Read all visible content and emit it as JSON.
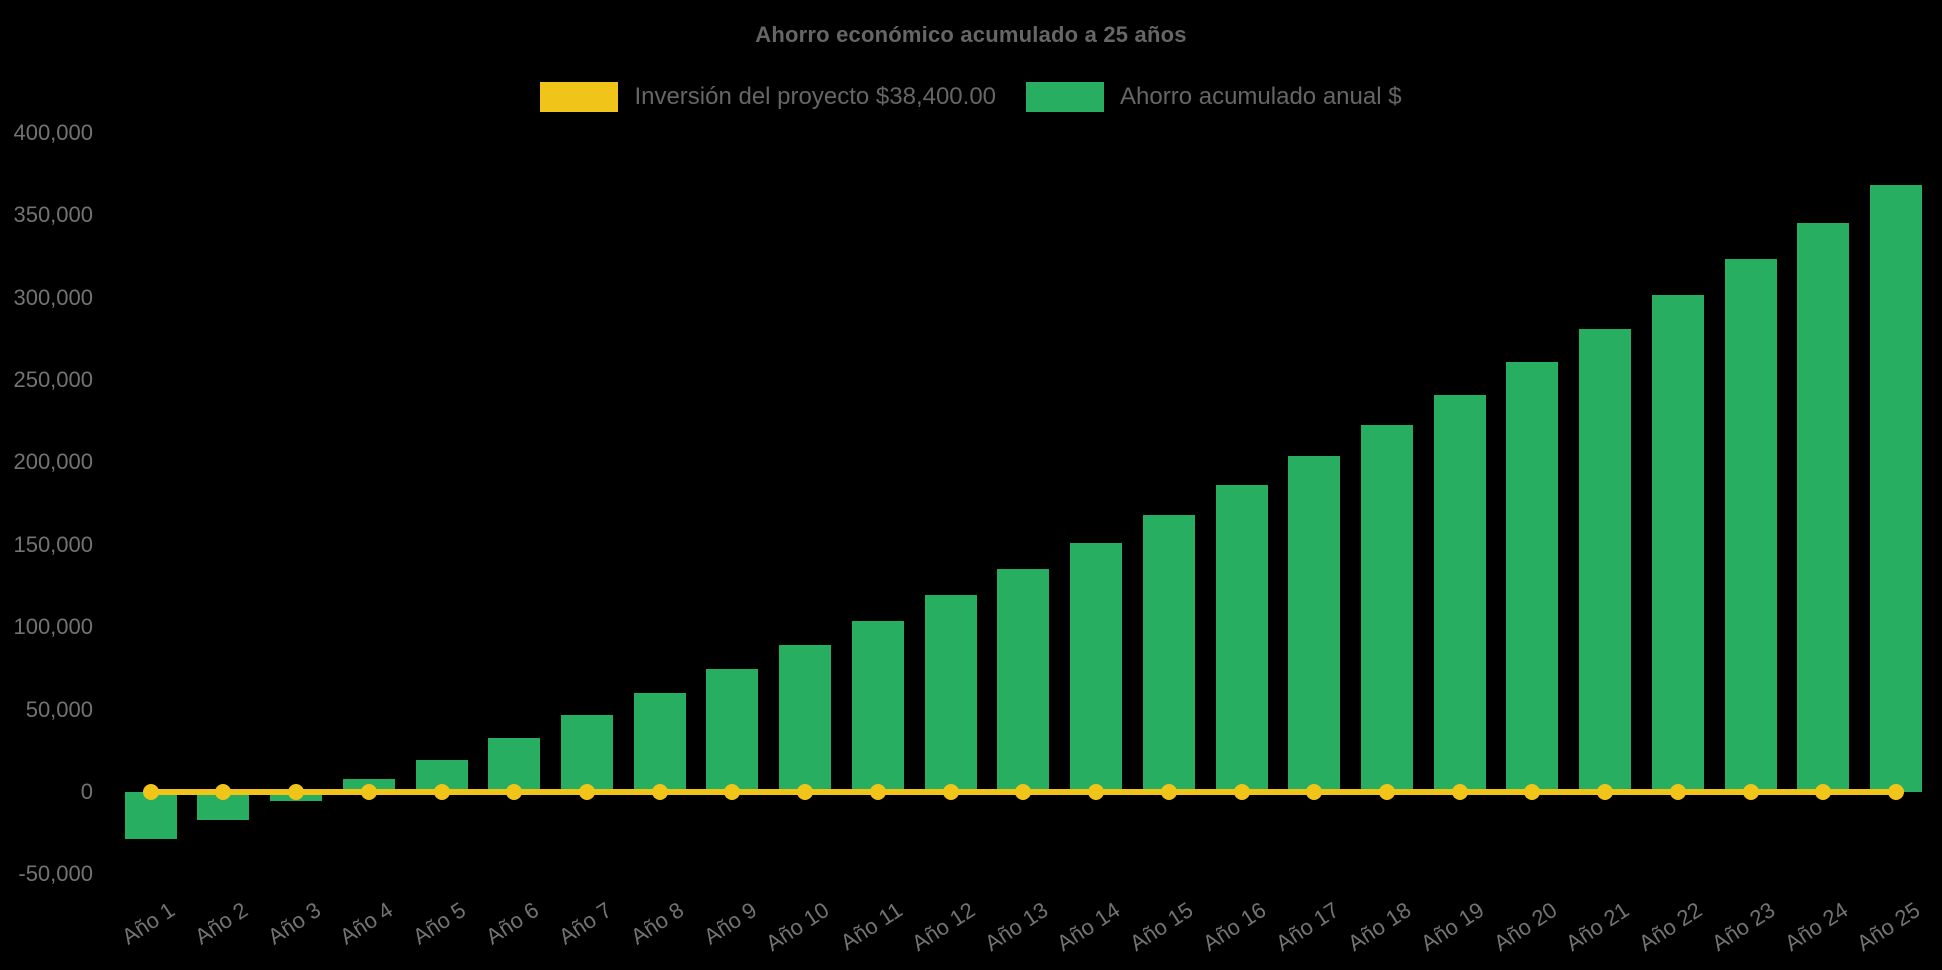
{
  "chart": {
    "title": "Ahorro económico acumulado a 25 años",
    "background_color": "#000000",
    "text_color": "#666666",
    "axis_label_color": "#737373"
  },
  "chart_data": {
    "type": "bar",
    "title": "Ahorro económico acumulado a 25 años",
    "categories": [
      "Año 1",
      "Año 2",
      "Año 3",
      "Año 4",
      "Año 5",
      "Año 6",
      "Año 7",
      "Año 8",
      "Año 9",
      "Año 10",
      "Año 11",
      "Año 12",
      "Año 13",
      "Año 14",
      "Año 15",
      "Año 16",
      "Año 17",
      "Año 18",
      "Año 19",
      "Año 20",
      "Año 21",
      "Año 22",
      "Año 23",
      "Año 24",
      "Año 25"
    ],
    "series": [
      {
        "name": "Inversión del proyecto $38,400.00",
        "type": "line",
        "color": "#F0C419",
        "marker": "circle",
        "values": [
          0,
          0,
          0,
          0,
          0,
          0,
          0,
          0,
          0,
          0,
          0,
          0,
          0,
          0,
          0,
          0,
          0,
          0,
          0,
          0,
          0,
          0,
          0,
          0,
          0
        ]
      },
      {
        "name": "Ahorro acumulado anual $",
        "type": "bar",
        "color": "#27AE60",
        "values": [
          -28400,
          -17000,
          -5500,
          7900,
          19500,
          33000,
          46700,
          60000,
          74700,
          89000,
          103600,
          119700,
          135100,
          151300,
          168100,
          186300,
          204100,
          222500,
          241000,
          261000,
          281200,
          301700,
          323600,
          345400,
          368300
        ]
      }
    ],
    "y_ticks": {
      "values": [
        400000,
        350000,
        300000,
        250000,
        200000,
        150000,
        100000,
        50000,
        0,
        -50000
      ],
      "labels": [
        "400,000",
        "350,000",
        "300,000",
        "250,000",
        "200,000",
        "150,000",
        "100,000",
        "50,000",
        "0",
        "-50,000"
      ]
    },
    "ylim": [
      -50000,
      430000
    ],
    "grid": false,
    "legend_position": "top"
  }
}
